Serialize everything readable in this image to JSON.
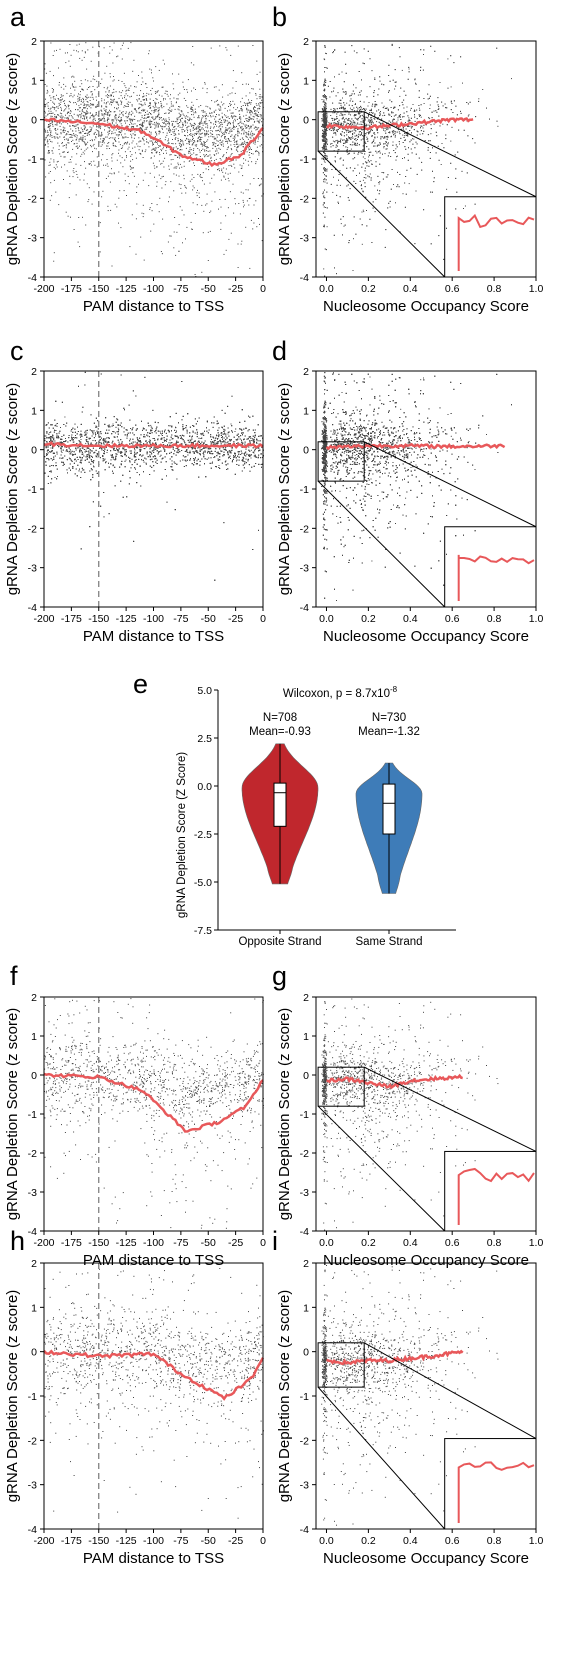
{
  "figure": {
    "panels": [
      {
        "id": "a",
        "letter": "a",
        "kind": "tss",
        "density": "medium",
        "dip": -1.15,
        "dip_at": -45,
        "onset": -110
      },
      {
        "id": "b",
        "letter": "b",
        "kind": "nuc",
        "density": "medium",
        "xmax_line": 0.7,
        "inset": "up"
      },
      {
        "id": "c",
        "letter": "c",
        "kind": "tss",
        "density": "high",
        "dip": 0.0,
        "dip_at": -50,
        "onset": -110
      },
      {
        "id": "d",
        "letter": "d",
        "kind": "nuc",
        "density": "high",
        "xmax_line": 0.85,
        "inset": "flat"
      },
      {
        "id": "f",
        "letter": "f",
        "kind": "tss",
        "density": "low",
        "dip": -1.5,
        "dip_at": -70,
        "onset": -140
      },
      {
        "id": "g",
        "letter": "g",
        "kind": "nuc",
        "density": "low",
        "xmax_line": 0.65,
        "inset": "up"
      },
      {
        "id": "h",
        "letter": "h",
        "kind": "tss",
        "density": "low",
        "dip": -1.05,
        "dip_at": -35,
        "onset": -100
      },
      {
        "id": "i",
        "letter": "i",
        "kind": "nuc",
        "density": "low",
        "xmax_line": 0.65,
        "inset": "up"
      }
    ],
    "violin_panel": {
      "letter": "e"
    }
  },
  "chart_data": [
    {
      "type": "scatter",
      "panel": "a",
      "xlabel": "PAM distance to TSS",
      "ylabel": "gRNA Depletion Score (z score)",
      "xlim": [
        -200,
        0
      ],
      "ylim": [
        -4,
        2
      ],
      "xticks": [
        "-200",
        "-175",
        "-150",
        "-125",
        "-100",
        "-75",
        "-50",
        "-25",
        "0"
      ],
      "yticks": [
        "2",
        "1",
        "0",
        "-1",
        "-2",
        "-3",
        "-4"
      ],
      "reference_line_x": -150,
      "trend": {
        "x": [
          -200,
          -150,
          -110,
          -75,
          -45,
          -20,
          0
        ],
        "y": [
          0.0,
          -0.1,
          -0.3,
          -0.9,
          -1.15,
          -0.9,
          -0.2
        ]
      }
    },
    {
      "type": "scatter",
      "panel": "b",
      "xlabel": "Nucleosome Occupancy Score",
      "ylabel": "gRNA Depletion Score (z score)",
      "xlim": [
        -0.05,
        1.0
      ],
      "ylim": [
        -4,
        2
      ],
      "xticks": [
        "0.0",
        "0.2",
        "0.4",
        "0.6",
        "0.8",
        "1.0"
      ],
      "yticks": [
        "2",
        "1",
        "0",
        "-1",
        "-2",
        "-3",
        "-4"
      ],
      "trend": {
        "x": [
          0.0,
          0.1,
          0.2,
          0.3,
          0.4,
          0.5,
          0.6,
          0.7
        ],
        "y": [
          -0.15,
          -0.18,
          -0.2,
          -0.15,
          -0.1,
          -0.05,
          0.0,
          0.0
        ]
      }
    },
    {
      "type": "scatter",
      "panel": "c",
      "xlabel": "PAM distance to TSS",
      "ylabel": "gRNA Depletion Score (z score)",
      "xlim": [
        -200,
        0
      ],
      "ylim": [
        -4,
        2
      ],
      "xticks": [
        "-200",
        "-175",
        "-150",
        "-125",
        "-100",
        "-75",
        "-50",
        "-25",
        "0"
      ],
      "yticks": [
        "2",
        "1",
        "0",
        "-1",
        "-2",
        "-3",
        "-4"
      ],
      "reference_line_x": -150,
      "trend": {
        "x": [
          -200,
          -150,
          -100,
          -50,
          0
        ],
        "y": [
          0.15,
          0.1,
          0.1,
          0.1,
          0.1
        ]
      }
    },
    {
      "type": "scatter",
      "panel": "d",
      "xlabel": "Nucleosome Occupancy Score",
      "ylabel": "gRNA Depletion Score (z score)",
      "xlim": [
        -0.05,
        1.0
      ],
      "ylim": [
        -4,
        2
      ],
      "xticks": [
        "0.0",
        "0.2",
        "0.4",
        "0.6",
        "0.8",
        "1.0"
      ],
      "yticks": [
        "2",
        "1",
        "0",
        "-1",
        "-2",
        "-3",
        "-4"
      ],
      "trend": {
        "x": [
          0.0,
          0.2,
          0.4,
          0.6,
          0.85
        ],
        "y": [
          0.05,
          0.1,
          0.1,
          0.08,
          0.1
        ]
      }
    },
    {
      "type": "violin",
      "panel": "e",
      "title": "Wilcoxon, p = 8.7x10",
      "title_sup": "-8",
      "ylabel": "gRNA Depletion Score (Z Score)",
      "ylim": [
        -7.5,
        5.0
      ],
      "yticks": [
        "5.0",
        "2.5",
        "0.0",
        "-2.5",
        "-5.0",
        "-7.5"
      ],
      "categories": [
        "Opposite Strand",
        "Same Strand"
      ],
      "series": [
        {
          "name": "Opposite Strand",
          "n_label": "N=708",
          "mean_label": "Mean=-0.93",
          "mean": -0.93,
          "color": "#c0272d",
          "min": -5.1,
          "max": 2.2,
          "q1": -2.1,
          "median": -0.35,
          "q3": 0.15
        },
        {
          "name": "Same Strand",
          "n_label": "N=730",
          "mean_label": "Mean=-1.32",
          "mean": -1.32,
          "color": "#3e7cb8",
          "min": -5.6,
          "max": 1.2,
          "q1": -2.5,
          "median": -0.9,
          "q3": 0.1
        }
      ]
    },
    {
      "type": "scatter",
      "panel": "f",
      "xlabel": "PAM distance to TSS",
      "ylabel": "gRNA Depletion Score (z score)",
      "xlim": [
        -200,
        0
      ],
      "ylim": [
        -4,
        2
      ],
      "xticks": [
        "-200",
        "-175",
        "-150",
        "-125",
        "-100",
        "-75",
        "-50",
        "-25",
        "0"
      ],
      "yticks": [
        "2",
        "1",
        "0",
        "-1",
        "-2",
        "-3",
        "-4"
      ],
      "reference_line_x": -150,
      "trend": {
        "x": [
          -200,
          -150,
          -110,
          -70,
          -40,
          -15,
          0
        ],
        "y": [
          0.0,
          -0.05,
          -0.4,
          -1.45,
          -1.2,
          -0.8,
          -0.1
        ]
      }
    },
    {
      "type": "scatter",
      "panel": "g",
      "xlabel": "Nucleosome Occupancy Score",
      "ylabel": "gRNA Depletion Score (z score)",
      "xlim": [
        -0.05,
        1.0
      ],
      "ylim": [
        -4,
        2
      ],
      "xticks": [
        "0.0",
        "0.2",
        "0.4",
        "0.6",
        "0.8",
        "1.0"
      ],
      "yticks": [
        "2",
        "1",
        "0",
        "-1",
        "-2",
        "-3",
        "-4"
      ],
      "trend": {
        "x": [
          0.0,
          0.1,
          0.2,
          0.3,
          0.4,
          0.5,
          0.65
        ],
        "y": [
          -0.15,
          -0.1,
          -0.2,
          -0.3,
          -0.15,
          -0.1,
          -0.05
        ]
      }
    },
    {
      "type": "scatter",
      "panel": "h",
      "xlabel": "PAM distance to TSS",
      "ylabel": "gRNA Depletion Score (z score)",
      "xlim": [
        -200,
        0
      ],
      "ylim": [
        -4,
        2
      ],
      "xticks": [
        "-200",
        "-175",
        "-150",
        "-125",
        "-100",
        "-75",
        "-50",
        "-25",
        "0"
      ],
      "yticks": [
        "2",
        "1",
        "0",
        "-1",
        "-2",
        "-3",
        "-4"
      ],
      "reference_line_x": -150,
      "trend": {
        "x": [
          -200,
          -150,
          -100,
          -75,
          -35,
          -10,
          0
        ],
        "y": [
          0.0,
          -0.1,
          -0.05,
          -0.5,
          -1.05,
          -0.6,
          -0.1
        ]
      }
    },
    {
      "type": "scatter",
      "panel": "i",
      "xlabel": "Nucleosome Occupancy Score",
      "ylabel": "gRNA Depletion Score (z score)",
      "xlim": [
        -0.05,
        1.0
      ],
      "ylim": [
        -4,
        2
      ],
      "xticks": [
        "0.0",
        "0.2",
        "0.4",
        "0.6",
        "0.8",
        "1.0"
      ],
      "yticks": [
        "2",
        "1",
        "0",
        "-1",
        "-2",
        "-3",
        "-4"
      ],
      "trend": {
        "x": [
          0.0,
          0.1,
          0.2,
          0.3,
          0.4,
          0.5,
          0.65
        ],
        "y": [
          -0.2,
          -0.25,
          -0.2,
          -0.2,
          -0.15,
          -0.1,
          0.0
        ]
      }
    }
  ]
}
